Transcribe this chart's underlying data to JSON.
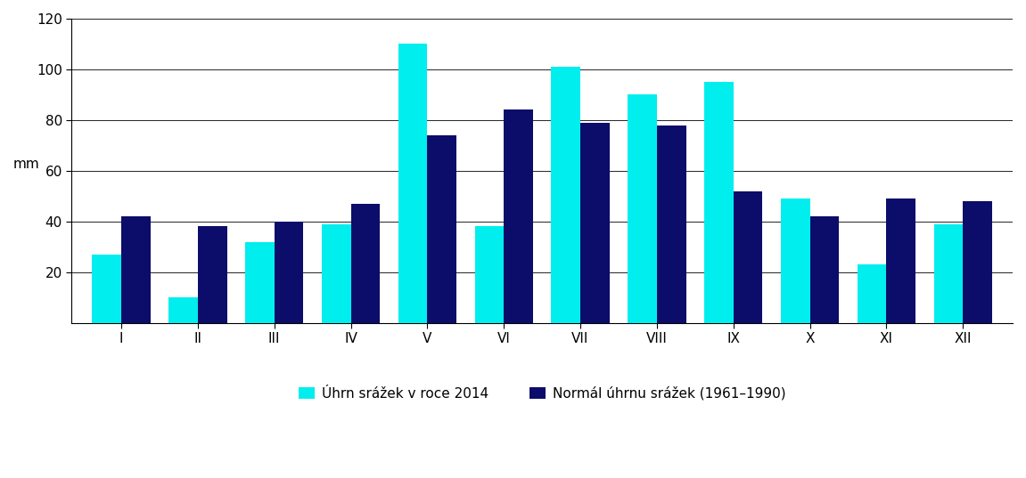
{
  "months": [
    "I",
    "II",
    "III",
    "IV",
    "V",
    "VI",
    "VII",
    "VIII",
    "IX",
    "X",
    "XI",
    "XII"
  ],
  "values_2014": [
    27,
    10,
    32,
    39,
    110,
    38,
    101,
    90,
    95,
    49,
    23,
    39
  ],
  "values_normal": [
    42,
    38,
    40,
    47,
    74,
    84,
    79,
    78,
    52,
    42,
    49,
    48
  ],
  "color_2014": "#00EEEE",
  "color_normal": "#0C0C6B",
  "ylabel": "mm",
  "ylim": [
    0,
    120
  ],
  "yticks": [
    20,
    40,
    60,
    80,
    100,
    120
  ],
  "legend_2014": "Úhrn srážek v roce 2014",
  "legend_normal": "Normál úhrnu srážek (1961–1990)",
  "background_color": "#ffffff",
  "grid_color": "#000000",
  "spine_color": "#000000"
}
